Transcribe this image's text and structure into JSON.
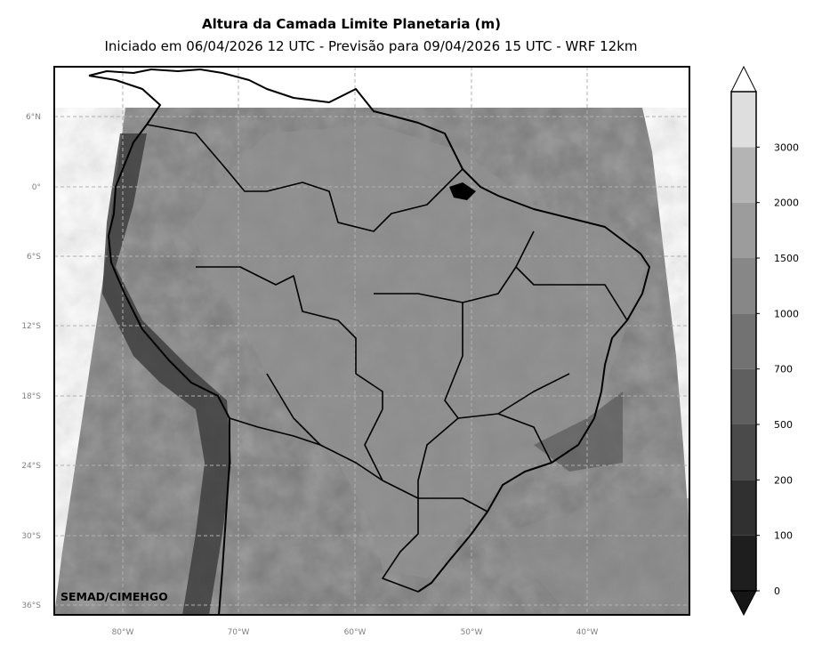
{
  "title": "Altura da Camada Limite Planetaria (m)",
  "subtitle": "Iniciado em 06/04/2026 12 UTC - Previsão para 09/04/2026 15 UTC - WRF 12km",
  "credit": "SEMAD/CIMEHGO",
  "lat_labels": [
    "6°N",
    "0°",
    "6°S",
    "12°S",
    "18°S",
    "24°S",
    "30°S",
    "36°S"
  ],
  "lon_labels": [
    "80°W",
    "70°W",
    "60°W",
    "50°W",
    "40°W"
  ],
  "colorbar": {
    "levels": [
      0,
      100,
      200,
      500,
      700,
      1000,
      1500,
      2000,
      3000
    ],
    "labels": [
      "0",
      "100",
      "200",
      "500",
      "700",
      "1000",
      "1500",
      "2000",
      "3000"
    ],
    "colors": [
      "#1e1e1e",
      "#303030",
      "#4a4a4a",
      "#5f5f5f",
      "#727272",
      "#878787",
      "#9c9c9c",
      "#b4b4b4",
      "#dedede"
    ],
    "under_color": "#161616",
    "over_color": "#ffffff"
  },
  "colors": {
    "field_base": "#7a7a7a",
    "grid": "#b0b0b0",
    "coast": "#000000"
  }
}
